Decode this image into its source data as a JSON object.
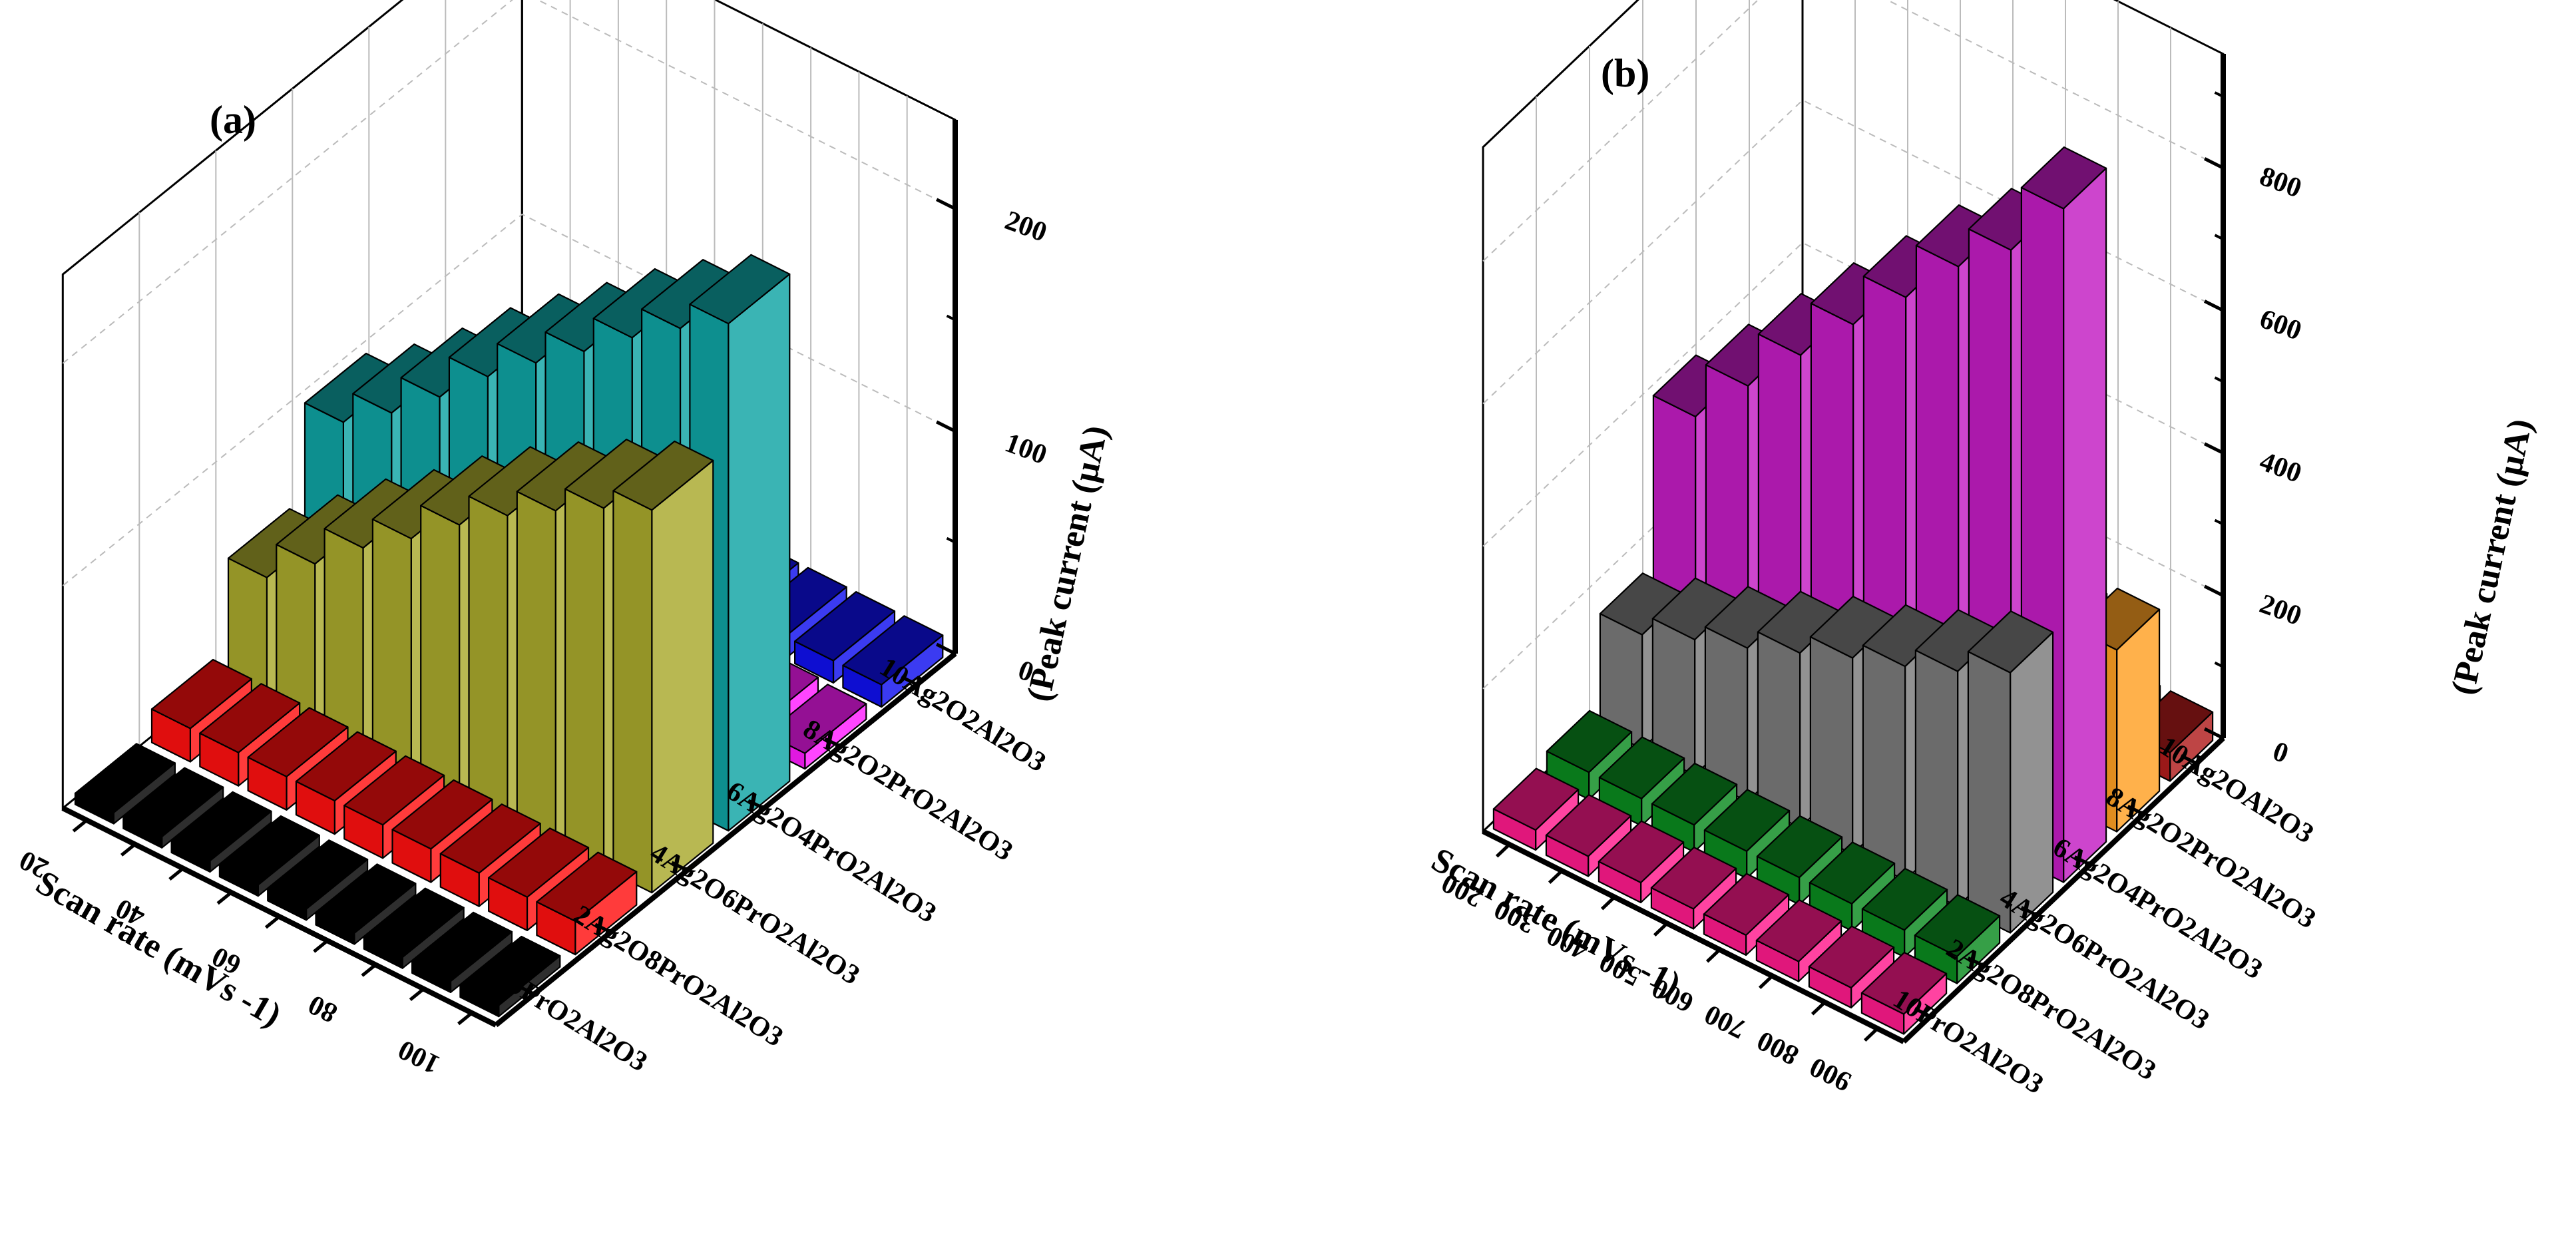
{
  "figure": {
    "panels": [
      "(a)",
      "(b)"
    ]
  },
  "chart_data": [
    {
      "type": "bar3d",
      "panel": "(a)",
      "xlabel": "Scan rate (mVs -1)",
      "ylabel": "",
      "zlabel": "(Peak current (µA)",
      "scan_rates": [
        20,
        30,
        40,
        50,
        60,
        70,
        80,
        90,
        100
      ],
      "scan_tick_labels": [
        "20",
        "40",
        "60",
        "80",
        "100"
      ],
      "z_tick_labels": [
        "0",
        "100",
        "200"
      ],
      "zlim": [
        0,
        240
      ],
      "series": [
        {
          "name": "10PrO2Al2O3",
          "color": "#000000",
          "values": [
            5,
            5,
            5,
            5,
            5,
            5,
            5,
            5,
            5
          ]
        },
        {
          "name": "2Ag2O8PrO2Al2O3",
          "color": "#ff1010",
          "values": [
            15,
            15,
            15,
            15,
            15,
            15,
            15,
            15,
            15
          ]
        },
        {
          "name": "4Ag2O6PrO2Al2O3",
          "color": "#a8a82c",
          "values": [
            55,
            72,
            90,
            105,
            122,
            137,
            150,
            162,
            172
          ]
        },
        {
          "name": "6Ag2O4PrO2Al2O3",
          "color": "#0fa3a3",
          "values": [
            97,
            112,
            130,
            150,
            167,
            183,
            200,
            215,
            228
          ]
        },
        {
          "name": "8Ag2O2PrO2Al2O3",
          "color": "#ff1cff",
          "values": [
            15,
            14,
            13,
            12,
            11,
            10,
            9,
            8,
            7
          ]
        },
        {
          "name": "10Ag2O2Al2O3",
          "color": "#1010ee",
          "values": [
            10,
            10,
            10,
            10,
            10,
            10,
            10,
            10,
            10
          ]
        }
      ]
    },
    {
      "type": "bar3d",
      "panel": "(b)",
      "xlabel": "Scan rate (mVs -1)",
      "ylabel": "",
      "zlabel": "(Peak current (µA)",
      "scan_rates": [
        200,
        300,
        400,
        500,
        600,
        700,
        800,
        900
      ],
      "scan_tick_labels": [
        "200",
        "300",
        "400",
        "500",
        "600",
        "700",
        "800",
        "900"
      ],
      "z_tick_labels": [
        "0",
        "200",
        "400",
        "600",
        "800"
      ],
      "zlim": [
        0,
        960
      ],
      "series": [
        {
          "name": "10PrO2Al2O3",
          "color": "#ff1a8c",
          "values": [
            28,
            28,
            28,
            28,
            28,
            28,
            28,
            28
          ]
        },
        {
          "name": "2Ag2O8PrO2Al2O3",
          "color": "#0a8a1f",
          "values": [
            38,
            38,
            38,
            38,
            38,
            38,
            38,
            38
          ]
        },
        {
          "name": "4Ag2O6PrO2Al2O3",
          "color": "#7a7a7a",
          "values": [
            160,
            190,
            215,
            245,
            275,
            300,
            330,
            365
          ]
        },
        {
          "name": "6Ag2O4PrO2Al2O3",
          "color": "#c21cc2",
          "values": [
            395,
            475,
            555,
            635,
            710,
            790,
            850,
            945
          ]
        },
        {
          "name": "8Ag2O2PrO2Al2O3",
          "color": "#ffa023",
          "values": [
            150,
            165,
            180,
            195,
            210,
            225,
            240,
            255
          ]
        },
        {
          "name": "10Ag2OAl2O3",
          "color": "#b01c1c",
          "values": [
            40,
            40,
            40,
            40,
            40,
            40,
            40,
            40
          ]
        }
      ]
    }
  ]
}
